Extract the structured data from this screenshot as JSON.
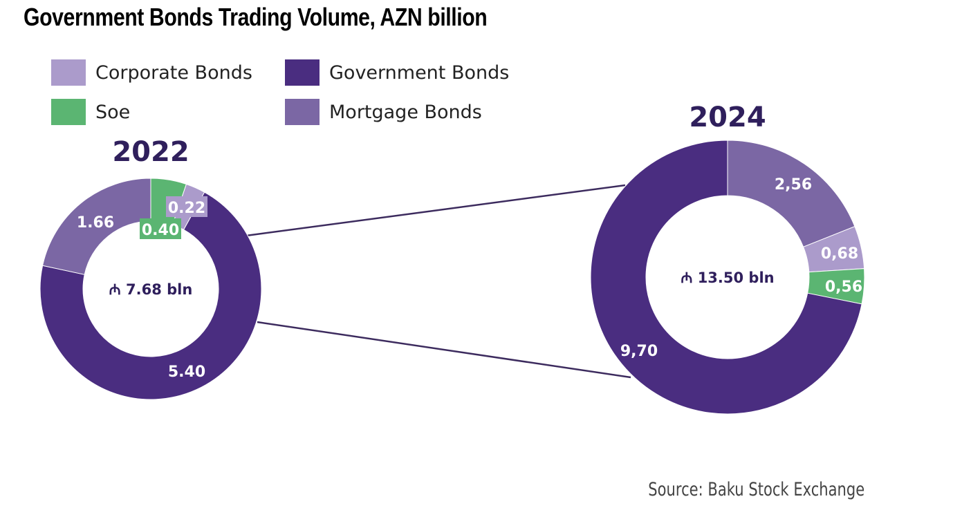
{
  "chart_data": {
    "type": "pie",
    "title": "Government Bonds Trading Volume, AZN billion",
    "source": "Source: Baku Stock Exchange",
    "legend": [
      {
        "name": "Corporate Bonds",
        "color": "#ab9bcb"
      },
      {
        "name": "Government Bonds",
        "color": "#4a2d80"
      },
      {
        "name": "Soe",
        "color": "#5bb572"
      },
      {
        "name": "Mortgage Bonds",
        "color": "#7b67a4"
      }
    ],
    "charts": [
      {
        "year": "2022",
        "total_label": "₼ 7.68 bln",
        "segments": [
          {
            "name": "Soe",
            "value": 0.4,
            "label": "0.40",
            "color": "#5bb572"
          },
          {
            "name": "Corporate Bonds",
            "value": 0.22,
            "label": "0.22",
            "color": "#ab9bcb"
          },
          {
            "name": "Government Bonds",
            "value": 5.4,
            "label": "5.40",
            "color": "#4a2d80"
          },
          {
            "name": "Mortgage Bonds",
            "value": 1.66,
            "label": "1.66",
            "color": "#7b67a4"
          }
        ]
      },
      {
        "year": "2024",
        "total_label": "₼ 13.50 bln",
        "segments": [
          {
            "name": "Mortgage Bonds",
            "value": 2.56,
            "label": "2,56",
            "color": "#7b67a4"
          },
          {
            "name": "Corporate Bonds",
            "value": 0.68,
            "label": "0,68",
            "color": "#ab9bcb"
          },
          {
            "name": "Soe",
            "value": 0.56,
            "label": "0,56",
            "color": "#5bb572"
          },
          {
            "name": "Government Bonds",
            "value": 9.7,
            "label": "9,70",
            "color": "#4a2d80"
          }
        ]
      }
    ]
  }
}
